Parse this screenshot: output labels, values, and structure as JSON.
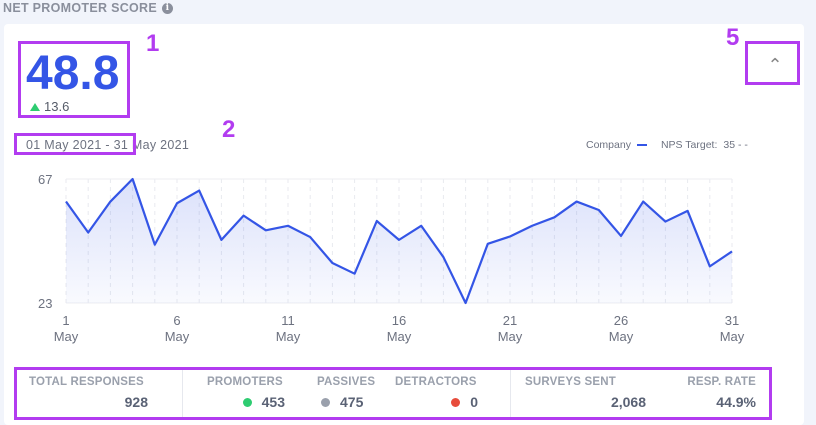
{
  "header": {
    "title": "NET PROMOTER SCORE",
    "info_icon": "info-icon"
  },
  "score": {
    "value": "48.8",
    "delta": "13.6",
    "delta_direction": "up"
  },
  "date_range": "01 May 2021 - 31 May 2021",
  "legend": {
    "company": "Company",
    "target_label": "NPS Target:",
    "target_value": "35 - -"
  },
  "annotations": {
    "a1": "1",
    "a2": "2",
    "a5": "5"
  },
  "collapse_icon": "chevron-up-icon",
  "colors": {
    "accent": "#3455e6",
    "promoters": "#2ecc71",
    "passives": "#9aa0ac",
    "detractors": "#e74c3c",
    "annotation": "#b23cf0"
  },
  "chart_data": {
    "type": "area",
    "x": [
      1,
      2,
      3,
      4,
      5,
      6,
      7,
      8,
      9,
      10,
      11,
      12,
      13,
      14,
      15,
      16,
      17,
      18,
      19,
      20,
      21,
      22,
      23,
      24,
      25,
      26,
      27,
      28,
      29,
      30,
      31
    ],
    "series": [
      {
        "name": "Company",
        "values": [
          59,
          48,
          59,
          67,
          43.7,
          58.4,
          62.9,
          45.4,
          54,
          48.8,
          50.4,
          46.4,
          37.2,
          33.4,
          52.1,
          45.4,
          50.4,
          39.3,
          23,
          44,
          46.6,
          50.4,
          53.4,
          59,
          56,
          46.8,
          59,
          51.9,
          55.7,
          36,
          41.3
        ]
      }
    ],
    "ylim": [
      23,
      67
    ],
    "yticks": [
      "67",
      "23"
    ],
    "xticks": [
      {
        "day": 1,
        "label": "1",
        "month": "May"
      },
      {
        "day": 6,
        "label": "6",
        "month": "May"
      },
      {
        "day": 11,
        "label": "11",
        "month": "May"
      },
      {
        "day": 16,
        "label": "16",
        "month": "May"
      },
      {
        "day": 21,
        "label": "21",
        "month": "May"
      },
      {
        "day": 26,
        "label": "26",
        "month": "May"
      },
      {
        "day": 31,
        "label": "31",
        "month": "May"
      }
    ],
    "target": 35,
    "grid": "vertical dashed"
  },
  "stats": {
    "total_responses": {
      "label": "TOTAL RESPONSES",
      "value": "928"
    },
    "promoters": {
      "label": "PROMOTERS",
      "value": "453"
    },
    "passives": {
      "label": "PASSIVES",
      "value": "475"
    },
    "detractors": {
      "label": "DETRACTORS",
      "value": "0"
    },
    "surveys_sent": {
      "label": "SURVEYS SENT",
      "value": "2,068"
    },
    "resp_rate": {
      "label": "RESP. RATE",
      "value": "44.9%"
    }
  }
}
